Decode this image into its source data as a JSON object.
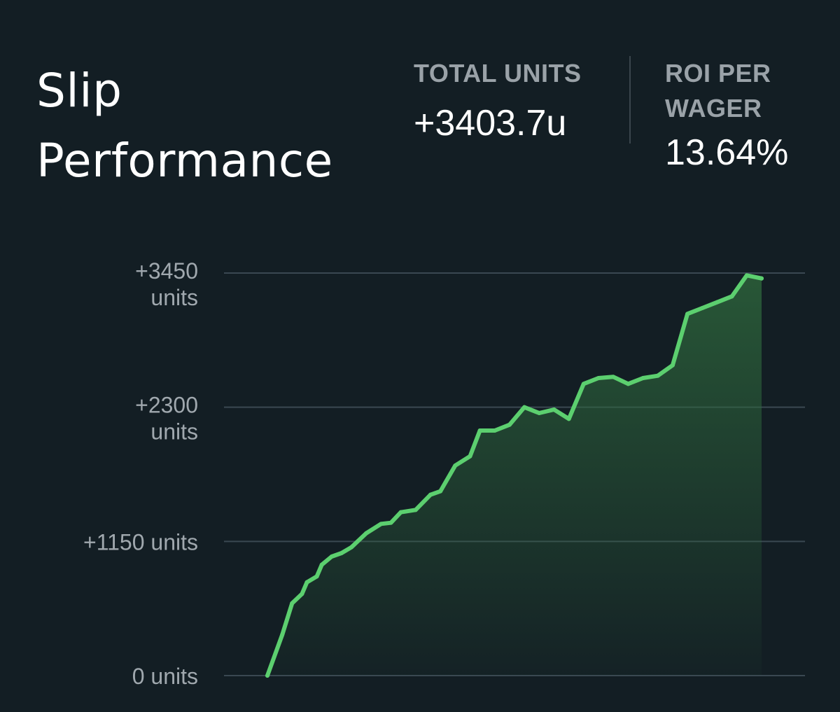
{
  "header": {
    "title_line1": "Slip",
    "title_line2": "Performance",
    "total_units_label": "TOTAL UNITS",
    "total_units_value": "+3403.7u",
    "roi_label_line1": "ROI PER",
    "roi_label_line2": "WAGER",
    "roi_value": "13.64%"
  },
  "colors": {
    "background": "#131e24",
    "line": "#5ccf6f",
    "fill": "#2f6a3d",
    "gridline": "#3a4852",
    "tick_text": "#a0a8ae"
  },
  "chart_data": {
    "type": "area",
    "title": "",
    "xlabel": "",
    "ylabel": "",
    "ylim": [
      0,
      3450
    ],
    "grid": true,
    "y_ticks": [
      {
        "value": 3450,
        "label": [
          "+3450",
          "units"
        ]
      },
      {
        "value": 2300,
        "label": [
          "+2300",
          "units"
        ]
      },
      {
        "value": 1150,
        "label": [
          "+1150 units"
        ]
      },
      {
        "value": 0,
        "label": [
          "0 units"
        ]
      }
    ],
    "series": [
      {
        "x": [
          0,
          3,
          5,
          7,
          8,
          10,
          11,
          13,
          15,
          17,
          20,
          23,
          25,
          27,
          30,
          33,
          35,
          38,
          41,
          43,
          46,
          49,
          52,
          55,
          58,
          61,
          64,
          67,
          70,
          73,
          76,
          79,
          82,
          85,
          88,
          91,
          94,
          97,
          100
        ],
        "y": [
          0,
          350,
          620,
          700,
          800,
          850,
          950,
          1020,
          1050,
          1100,
          1220,
          1300,
          1310,
          1400,
          1420,
          1550,
          1580,
          1800,
          1880,
          2100,
          2100,
          2150,
          2300,
          2250,
          2280,
          2200,
          2500,
          2550,
          2560,
          2500,
          2550,
          2570,
          2660,
          3100,
          3150,
          3200,
          3250,
          3430,
          3404
        ],
        "values": [
          0,
          350,
          620,
          700,
          800,
          850,
          950,
          1020,
          1050,
          1100,
          1220,
          1300,
          1310,
          1400,
          1420,
          1550,
          1580,
          1800,
          1880,
          2100,
          2100,
          2150,
          2300,
          2250,
          2280,
          2200,
          2500,
          2550,
          2560,
          2500,
          2550,
          2570,
          2660,
          3100,
          3150,
          3200,
          3250,
          3430,
          3404
        ]
      }
    ]
  }
}
